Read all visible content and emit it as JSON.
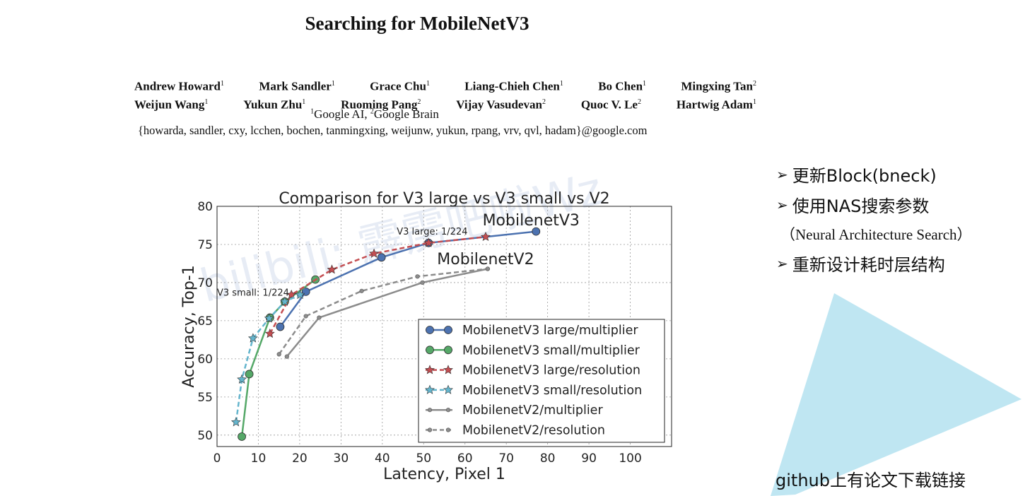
{
  "paper": {
    "title": "Searching for MobileNetV3",
    "authors_row1": [
      {
        "name": "Andrew Howard",
        "sup": "1"
      },
      {
        "name": "Mark Sandler",
        "sup": "1"
      },
      {
        "name": "Grace Chu",
        "sup": "1"
      },
      {
        "name": "Liang-Chieh Chen",
        "sup": "1"
      },
      {
        "name": "Bo Chen",
        "sup": "1"
      },
      {
        "name": "Mingxing Tan",
        "sup": "2"
      }
    ],
    "authors_row2": [
      {
        "name": "Weijun Wang",
        "sup": "1"
      },
      {
        "name": "Yukun Zhu",
        "sup": "1"
      },
      {
        "name": "Ruoming Pang",
        "sup": "2"
      },
      {
        "name": "Vijay Vasudevan",
        "sup": "2"
      },
      {
        "name": "Quoc V. Le",
        "sup": "2"
      },
      {
        "name": "Hartwig Adam",
        "sup": "1"
      }
    ],
    "affiliation_sup1": "1",
    "affiliation1": "Google AI, ",
    "affiliation_sup2": "2",
    "affiliation2": "Google Brain",
    "emails": "{howarda, sandler, cxy, lcchen, bochen, tanmingxing, weijunw, yukun, rpang, vrv, qvl, hadam}@google.com"
  },
  "bullets": {
    "item1": "更新Block(bneck)",
    "item2": "使用NAS搜索参数",
    "item2_sub": "（Neural Architecture Search）",
    "item3": "重新设计耗时层结构"
  },
  "footer_text": "github上有论文下载链接",
  "watermark": "bilibili: 霹雳吧啦Wz",
  "accent_color": "#bfe6f2",
  "chart_data": {
    "type": "line",
    "title": "Comparison for V3 large vs V3 small vs V2",
    "xlabel": "Latency, Pixel 1",
    "ylabel": "Accuracy, Top-1",
    "xlim": [
      0,
      110
    ],
    "ylim": [
      48.5,
      80
    ],
    "xticks": [
      0,
      10,
      20,
      30,
      40,
      50,
      60,
      70,
      80,
      90,
      100
    ],
    "yticks": [
      50,
      55,
      60,
      65,
      70,
      75,
      80
    ],
    "grid": true,
    "legend_position": "lower-right",
    "annotations": [
      {
        "text": "MobilenetV3",
        "x": 76,
        "y": 77.5,
        "size": "large"
      },
      {
        "text": "MobilenetV2",
        "x": 65,
        "y": 72.4,
        "size": "large"
      },
      {
        "text": "V3 large: 1/224",
        "x": 43.5,
        "y": 76.3,
        "size": "small"
      },
      {
        "text": "V3 small: 1/224",
        "x": 0,
        "y": 68.3,
        "size": "small"
      }
    ],
    "series": [
      {
        "name": "MobilenetV3 large/multiplier",
        "color": "#4c72b0",
        "dash": "solid",
        "marker": "circle",
        "x": [
          15.3,
          21.5,
          39.8,
          51.2,
          77.2
        ],
        "y": [
          64.2,
          68.8,
          73.3,
          75.2,
          76.7
        ]
      },
      {
        "name": "MobilenetV3 small/multiplier",
        "color": "#55a868",
        "dash": "solid",
        "marker": "circle",
        "x": [
          6.0,
          7.8,
          12.8,
          16.4,
          23.8
        ],
        "y": [
          49.8,
          58.0,
          65.4,
          67.5,
          70.4
        ]
      },
      {
        "name": "MobilenetV3 large/resolution",
        "color": "#c44e52",
        "dash": "dashed",
        "marker": "star",
        "x": [
          12.8,
          18.0,
          27.8,
          38.0,
          51.2,
          65.0
        ],
        "y": [
          63.3,
          68.4,
          71.7,
          73.8,
          75.2,
          76.0
        ]
      },
      {
        "name": "MobilenetV3 small/resolution",
        "color": "#64b5cd",
        "dash": "dashed",
        "marker": "star",
        "x": [
          4.6,
          6.0,
          8.7,
          12.6,
          16.4,
          20.1
        ],
        "y": [
          51.7,
          57.3,
          62.7,
          65.3,
          67.5,
          68.4
        ]
      },
      {
        "name": "MobilenetV2/multiplier",
        "color": "#8c8c8c",
        "dash": "solid",
        "marker": "dot",
        "x": [
          16.9,
          24.7,
          49.7,
          65.5
        ],
        "y": [
          60.3,
          65.4,
          70.0,
          71.8
        ]
      },
      {
        "name": "MobilenetV2/resolution",
        "color": "#8c8c8c",
        "dash": "dashed",
        "marker": "dot",
        "x": [
          15.0,
          21.5,
          35.0,
          48.5,
          65.5
        ],
        "y": [
          60.6,
          65.6,
          68.9,
          70.8,
          71.8
        ]
      }
    ]
  }
}
